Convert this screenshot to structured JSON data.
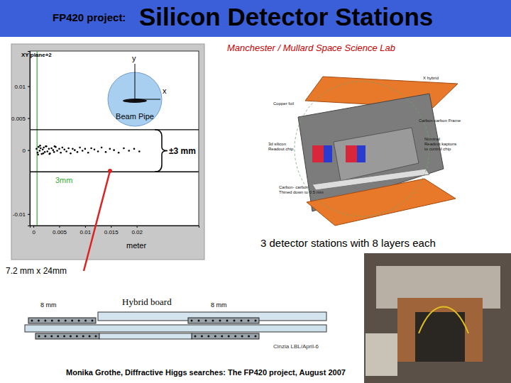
{
  "header": {
    "project": "FP420 project:",
    "title": "Silicon Detector Stations"
  },
  "subtitle": "Manchester / Mullard Space Science Lab",
  "chart_data": {
    "type": "scatter",
    "title": "XY plane+2",
    "xlabel": "meter",
    "x": [
      0.0006,
      0.0008,
      0.001,
      0.0012,
      0.0014,
      0.0016,
      0.0018,
      0.002,
      0.0022,
      0.0025,
      0.0027,
      0.003,
      0.0032,
      0.0035,
      0.0038,
      0.004,
      0.0043,
      0.0046,
      0.005,
      0.0053,
      0.0056,
      0.006,
      0.0064,
      0.0068,
      0.0072,
      0.0076,
      0.008,
      0.0085,
      0.009,
      0.0095,
      0.01,
      0.0106,
      0.0112,
      0.0118,
      0.0125,
      0.0132,
      0.014,
      0.0148,
      0.0156,
      0.0165,
      0.0175,
      0.0185,
      0.0195,
      0.0205,
      0.0009,
      0.0013,
      0.0019,
      0.0024,
      0.0031,
      0.0041
    ],
    "values": [
      0.0002,
      -0.0004,
      0.0005,
      -0.0001,
      0.0003,
      -0.0006,
      0.0001,
      0.0004,
      -0.0003,
      0.0006,
      -0.0002,
      0.0002,
      -0.0005,
      0.0003,
      0,
      -0.0003,
      0.0005,
      -0.0001,
      0.0002,
      -0.0004,
      0.0004,
      0.0001,
      -0.0002,
      0.0003,
      -0.0005,
      0.0002,
      0,
      -0.0003,
      0.0004,
      -0.0001,
      0.0002,
      -0.0004,
      0.0003,
      0.0001,
      -0.0002,
      0.0004,
      -0.0003,
      0.0002,
      0,
      -0.0004,
      0.0003,
      -0.0001,
      0.0002,
      -0.0002,
      -0.0007,
      0.0007,
      -0.0005,
      0.0006,
      -0.0006,
      0.0006
    ],
    "color": "#000000",
    "marker": "dot",
    "xlim": [
      -0.0007,
      0.032
    ],
    "ylim": [
      -0.0118,
      0.0155
    ],
    "xticks": [
      0,
      0.005,
      0.01,
      0.015,
      0.02
    ],
    "yticks": [
      -0.01,
      0,
      0.005,
      0.01
    ],
    "hlines": [
      0.0032,
      -0.0034
    ],
    "vlines": [
      0.0007
    ],
    "vline_label": "3mm",
    "band_label": "±3 mm",
    "beam_pipe": {
      "label": "Beam Pipe",
      "axis_x": "x",
      "axis_y": "y"
    }
  },
  "detector": {
    "labels": [
      [
        "X hybrid"
      ],
      [
        "Copper foil"
      ],
      [
        "Carbon-carbon Frame"
      ],
      [
        "Nominal",
        "Readout kaptons",
        "to control chip"
      ],
      [
        "3d silicon",
        "Readout chip"
      ],
      [
        "Carbon- carbon",
        "Thined down to 0.5 mm"
      ]
    ],
    "caption": "3 detector stations with 8 layers each"
  },
  "sensor_size": "7.2 mm x 24mm",
  "board_diagram": {
    "labels": [
      "8 mm",
      "Hybrid board",
      "8 mm"
    ],
    "credit": "Cinzia LBL/April-6"
  },
  "footer": "Monika Grothe, Diffractive Higgs searches: The FP420 project, August 2007"
}
